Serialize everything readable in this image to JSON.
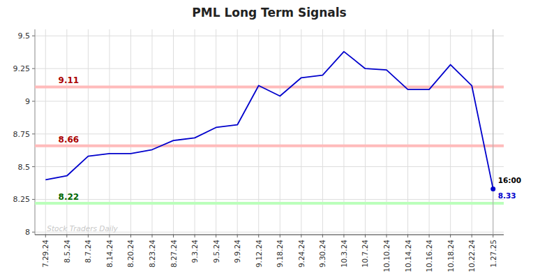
{
  "chart_data": {
    "type": "line",
    "title": "PML Long Term Signals",
    "categories": [
      "7.29.24",
      "8.5.24",
      "8.7.24",
      "8.14.24",
      "8.20.24",
      "8.23.24",
      "8.27.24",
      "9.3.24",
      "9.5.24",
      "9.9.24",
      "9.12.24",
      "9.18.24",
      "9.24.24",
      "9.30.24",
      "10.3.24",
      "10.7.24",
      "10.10.24",
      "10.14.24",
      "10.16.24",
      "10.18.24",
      "10.22.24",
      "1.27.25"
    ],
    "values": [
      8.4,
      8.43,
      8.58,
      8.6,
      8.6,
      8.63,
      8.7,
      8.72,
      8.8,
      8.82,
      9.12,
      9.04,
      9.18,
      9.2,
      9.38,
      9.25,
      9.24,
      9.09,
      9.09,
      9.28,
      9.12,
      8.33
    ],
    "color": "#0000cc",
    "ylim": [
      7.98,
      9.55
    ],
    "yticks": [
      8,
      8.25,
      8.5,
      8.75,
      9,
      9.25,
      9.5
    ],
    "grid": true,
    "hlines": [
      {
        "value": 9.11,
        "color": "#ffbbbb",
        "label_color": "#aa0000"
      },
      {
        "value": 8.66,
        "color": "#ffbbbb",
        "label_color": "#aa0000"
      },
      {
        "value": 8.22,
        "color": "#bbffbb",
        "label_color": "#006600"
      }
    ],
    "annotations": [
      {
        "text": "16:00",
        "color": "#000000"
      },
      {
        "text": "8.33",
        "color": "#0000cc"
      }
    ],
    "watermark": {
      "text": "Stock Traders Daily",
      "color": "#c8c8c8"
    }
  }
}
